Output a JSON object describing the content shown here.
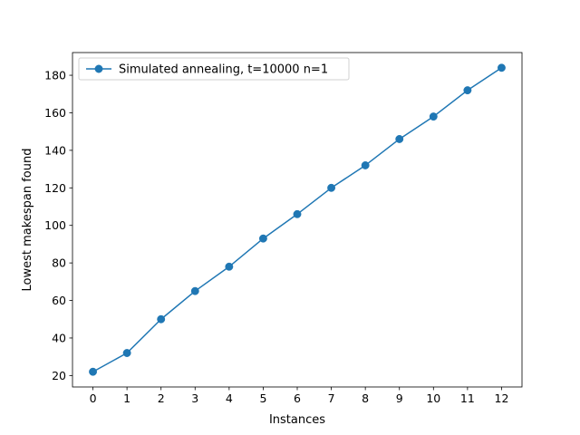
{
  "chart_data": {
    "type": "line",
    "title": "",
    "xlabel": "Instances",
    "ylabel": "Lowest makespan found",
    "x": [
      0,
      1,
      2,
      3,
      4,
      5,
      6,
      7,
      8,
      9,
      10,
      11,
      12
    ],
    "series": [
      {
        "name": "Simulated annealing, t=10000 n=1",
        "values": [
          22,
          32,
          50,
          65,
          78,
          93,
          106,
          120,
          132,
          146,
          158,
          172,
          184
        ],
        "color": "#1f77b4",
        "marker": "circle"
      }
    ],
    "xlim": [
      -0.6,
      12.6
    ],
    "ylim": [
      13.9,
      192.1
    ],
    "xticks": [
      0,
      1,
      2,
      3,
      4,
      5,
      6,
      7,
      8,
      9,
      10,
      11,
      12
    ],
    "yticks": [
      20,
      40,
      60,
      80,
      100,
      120,
      140,
      160,
      180
    ],
    "grid": false,
    "legend_position": "top-left"
  }
}
